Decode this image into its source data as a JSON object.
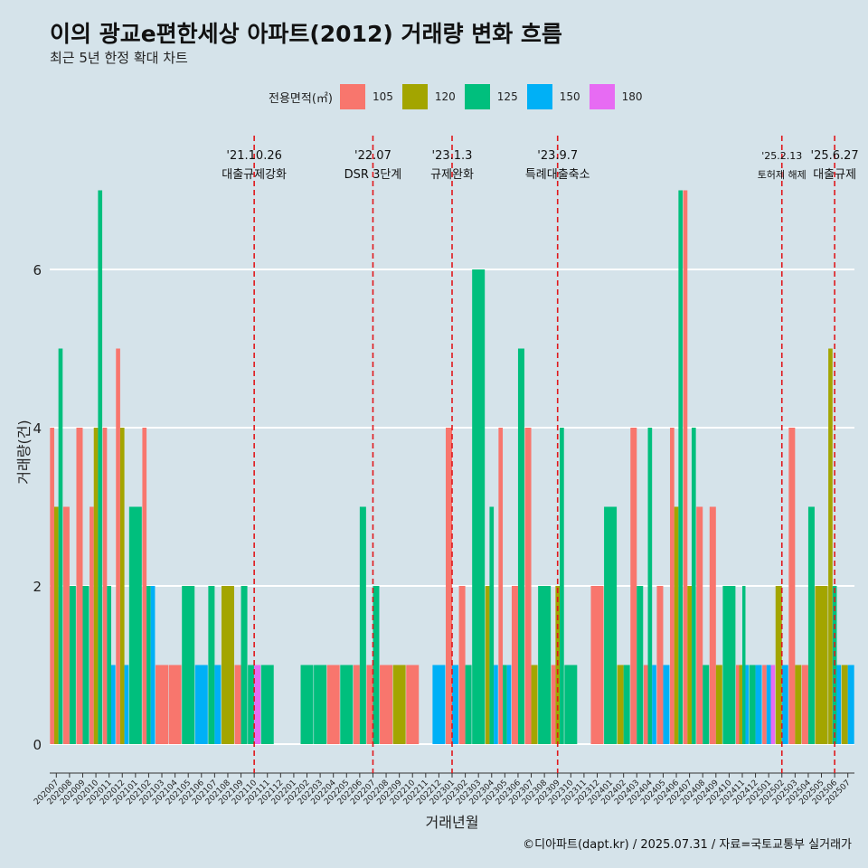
{
  "title": "이의 광교e편한세상 아파트(2012) 거래량 변화 흐름",
  "subtitle": "최근 5년 한정 확대 차트",
  "caption": "©디아파트(dapt.kr) / 2025.07.31 / 자료=국토교통부 실거래가",
  "legend": {
    "title": "전용면적(㎡)",
    "items": [
      {
        "label": "105",
        "color": "#f8766d"
      },
      {
        "label": "120",
        "color": "#a3a500"
      },
      {
        "label": "125",
        "color": "#00bf7d"
      },
      {
        "label": "150",
        "color": "#00b0f6"
      },
      {
        "label": "180",
        "color": "#e76bf3"
      }
    ]
  },
  "chart_data": {
    "type": "bar",
    "title": "이의 광교e편한세상 아파트(2012) 거래량 변화 흐름",
    "xlabel": "거래년월",
    "ylabel": "거래량(건)",
    "ylim": [
      0,
      7
    ],
    "yticks": [
      0,
      2,
      4,
      6
    ],
    "categories": [
      "202007",
      "202008",
      "202009",
      "202010",
      "202011",
      "202012",
      "202101",
      "202102",
      "202103",
      "202104",
      "202105",
      "202106",
      "202107",
      "202108",
      "202109",
      "202110",
      "202111",
      "202112",
      "202201",
      "202202",
      "202203",
      "202204",
      "202205",
      "202206",
      "202207",
      "202208",
      "202209",
      "202210",
      "202211",
      "202212",
      "202301",
      "202302",
      "202303",
      "202304",
      "202305",
      "202306",
      "202307",
      "202308",
      "202309",
      "202310",
      "202311",
      "202312",
      "202401",
      "202402",
      "202403",
      "202404",
      "202405",
      "202406",
      "202407",
      "202408",
      "202409",
      "202410",
      "202411",
      "202412",
      "202501",
      "202502",
      "202503",
      "202504",
      "202505",
      "202506",
      "202507"
    ],
    "series": [
      {
        "name": "105",
        "color": "#f8766d",
        "values": [
          4,
          3,
          4,
          3,
          4,
          5,
          0,
          4,
          1,
          1,
          0,
          0,
          0,
          0,
          1,
          0,
          0,
          0,
          0,
          0,
          0,
          1,
          0,
          1,
          1,
          1,
          0,
          1,
          0,
          0,
          4,
          2,
          0,
          0,
          4,
          2,
          4,
          0,
          1,
          0,
          0,
          2,
          0,
          0,
          4,
          1,
          2,
          4,
          7,
          3,
          3,
          0,
          1,
          0,
          1,
          0,
          4,
          1,
          0,
          0,
          0
        ]
      },
      {
        "name": "120",
        "color": "#a3a500",
        "values": [
          3,
          0,
          0,
          4,
          0,
          4,
          0,
          0,
          0,
          0,
          0,
          0,
          0,
          2,
          0,
          0,
          0,
          0,
          0,
          0,
          0,
          0,
          0,
          0,
          0,
          0,
          1,
          0,
          0,
          0,
          0,
          0,
          0,
          2,
          0,
          0,
          1,
          0,
          2,
          0,
          0,
          0,
          0,
          1,
          0,
          0,
          0,
          3,
          2,
          0,
          1,
          0,
          1,
          0,
          0,
          2,
          1,
          0,
          2,
          5,
          1
        ]
      },
      {
        "name": "125",
        "color": "#00bf7d",
        "values": [
          5,
          2,
          2,
          7,
          2,
          0,
          3,
          2,
          0,
          0,
          2,
          0,
          2,
          0,
          2,
          1,
          1,
          0,
          0,
          1,
          1,
          0,
          1,
          3,
          2,
          0,
          0,
          0,
          0,
          0,
          0,
          1,
          6,
          3,
          1,
          5,
          0,
          2,
          4,
          1,
          0,
          0,
          3,
          1,
          2,
          4,
          0,
          7,
          4,
          1,
          0,
          2,
          2,
          1,
          0,
          0,
          0,
          3,
          0,
          2,
          0
        ]
      },
      {
        "name": "150",
        "color": "#00b0f6",
        "values": [
          0,
          0,
          0,
          0,
          1,
          1,
          0,
          2,
          0,
          0,
          0,
          1,
          1,
          0,
          0,
          0,
          0,
          0,
          0,
          0,
          0,
          0,
          0,
          0,
          0,
          0,
          0,
          0,
          0,
          1,
          1,
          0,
          0,
          1,
          1,
          0,
          0,
          0,
          0,
          0,
          0,
          0,
          0,
          0,
          0,
          1,
          1,
          0,
          0,
          0,
          0,
          0,
          1,
          1,
          1,
          1,
          0,
          0,
          0,
          1,
          1
        ]
      },
      {
        "name": "180",
        "color": "#e76bf3",
        "values": [
          0,
          0,
          0,
          0,
          0,
          0,
          0,
          0,
          0,
          0,
          0,
          0,
          0,
          0,
          0,
          1,
          0,
          0,
          0,
          0,
          0,
          0,
          0,
          0,
          0,
          0,
          0,
          0,
          0,
          0,
          0,
          0,
          0,
          0,
          0,
          0,
          0,
          0,
          0,
          0,
          0,
          0,
          0,
          0,
          0,
          0,
          0,
          0,
          0,
          0,
          0,
          0,
          0,
          0,
          1,
          0,
          0,
          0,
          0,
          0,
          0
        ]
      }
    ],
    "annotations": [
      {
        "at": "202110",
        "date": "'21.10.26",
        "label": "대출규제강화"
      },
      {
        "at": "202207",
        "date": "'22.07",
        "label": "DSR 3단계"
      },
      {
        "at": "202301",
        "date": "'23.1.3",
        "label": "규제완화"
      },
      {
        "at": "202309",
        "date": "'23.9.7",
        "label": "특례대출축소"
      },
      {
        "at": "202502",
        "date": "'25.2.13",
        "label": "토허제 해제"
      },
      {
        "at": "202506",
        "date": "'25.6.27",
        "label": "대출규제"
      }
    ],
    "annotation_color": "#e0181c",
    "grid": true
  }
}
